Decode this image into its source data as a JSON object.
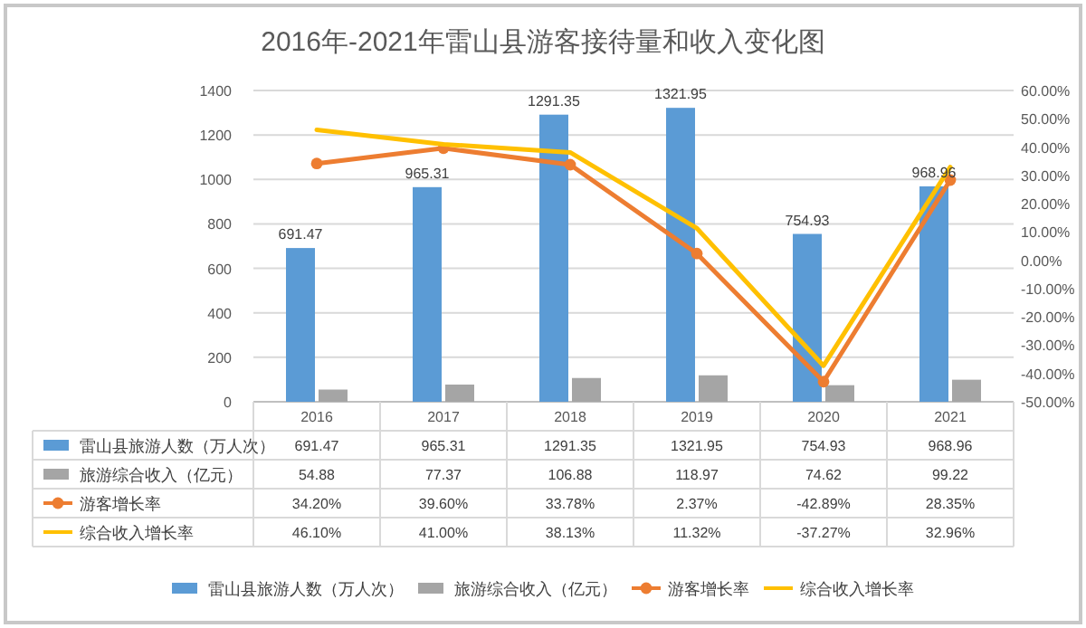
{
  "chart_data": {
    "type": "bar",
    "title": "2016年-2021年雷山县游客接待量和收入变化图",
    "categories": [
      "2016",
      "2017",
      "2018",
      "2019",
      "2020",
      "2021"
    ],
    "series": [
      {
        "name": "雷山县旅游人数（万人次）",
        "type": "bar",
        "color": "#5b9bd5",
        "values": [
          691.47,
          965.31,
          1291.35,
          1321.95,
          754.93,
          968.96
        ],
        "data_labels": true,
        "value_labels": [
          "691.47",
          "965.31",
          "1291.35",
          "1321.95",
          "754.93",
          "968.96"
        ]
      },
      {
        "name": "旅游综合收入（亿元）",
        "type": "bar",
        "color": "#a5a5a5",
        "values": [
          54.88,
          77.37,
          106.88,
          118.97,
          74.62,
          99.22
        ],
        "value_labels": [
          "54.88",
          "77.37",
          "106.88",
          "118.97",
          "74.62",
          "99.22"
        ]
      },
      {
        "name": "游客增长率",
        "type": "line",
        "axis": "y2",
        "marker": "circle",
        "color": "#ed7d31",
        "values": [
          34.2,
          39.6,
          33.78,
          2.37,
          -42.89,
          28.35
        ],
        "value_labels": [
          "34.20%",
          "39.60%",
          "33.78%",
          "2.37%",
          "-42.89%",
          "28.35%"
        ]
      },
      {
        "name": "综合收入增长率",
        "type": "line",
        "axis": "y2",
        "marker": "none",
        "color": "#ffc000",
        "values": [
          46.1,
          41.0,
          38.13,
          11.32,
          -37.27,
          32.96
        ],
        "value_labels": [
          "46.10%",
          "41.00%",
          "38.13%",
          "11.32%",
          "-37.27%",
          "32.96%"
        ]
      }
    ],
    "ylim": [
      0,
      1400
    ],
    "yticks": [
      0,
      200,
      400,
      600,
      800,
      1000,
      1200,
      1400
    ],
    "y2lim": [
      -50,
      60
    ],
    "y2ticks": [
      {
        "value": 60,
        "label": "60.00%"
      },
      {
        "value": 50,
        "label": "50.00%"
      },
      {
        "value": 40,
        "label": "40.00%"
      },
      {
        "value": 30,
        "label": "30.00%"
      },
      {
        "value": 20,
        "label": "20.00%"
      },
      {
        "value": 10,
        "label": "10.00%"
      },
      {
        "value": 0,
        "label": "0.00%"
      },
      {
        "value": -10,
        "label": "-10.00%"
      },
      {
        "value": -20,
        "label": "-20.00%"
      },
      {
        "value": -30,
        "label": "-30.00%"
      },
      {
        "value": -40,
        "label": "-40.00%"
      },
      {
        "value": -50,
        "label": "-50.00%"
      }
    ],
    "grid": "y",
    "legend": "bottom"
  }
}
